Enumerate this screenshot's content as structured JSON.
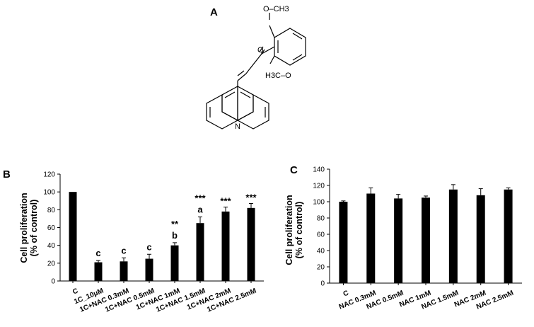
{
  "panels": {
    "a": {
      "letter": "A"
    },
    "b": {
      "letter": "B"
    },
    "c": {
      "letter": "C"
    }
  },
  "structure": {
    "methoxy_top": "O–CH3",
    "carbonyl_o": "O",
    "methoxy_bottom": "H3C–O",
    "nitrogen": "N"
  },
  "chart_data": [
    {
      "type": "bar",
      "panel": "B",
      "title": "",
      "xlabel": "",
      "ylabel_line1": "Cell proliferation",
      "ylabel_line2": "(% of control)",
      "ylim": [
        0,
        120
      ],
      "yticks": [
        0,
        20,
        40,
        60,
        80,
        100,
        120
      ],
      "grid": false,
      "bar_color": "#000000",
      "categories": [
        "C",
        "1C_10μM",
        "1C+NAC 0.3mM",
        "1C+NAC 0.5mM",
        "1C+NAC 1mM",
        "1C+NAC 1.5mM",
        "1C+NAC 2mM",
        "1C+NAC 2.5mM"
      ],
      "values": [
        100,
        21,
        22,
        25,
        40,
        65,
        78,
        82
      ],
      "errors": [
        0,
        2,
        4,
        5,
        3,
        7,
        5,
        5
      ],
      "letter_labels": [
        "",
        "c",
        "c",
        "c",
        "b",
        "a",
        "",
        ""
      ],
      "star_labels": [
        "",
        "",
        "",
        "",
        "**",
        "***",
        "***",
        "***"
      ]
    },
    {
      "type": "bar",
      "panel": "C",
      "title": "",
      "xlabel": "",
      "ylabel_line1": "Cell proliferation",
      "ylabel_line2": "(% of control)",
      "ylim": [
        0,
        140
      ],
      "yticks": [
        0,
        20,
        40,
        60,
        80,
        100,
        120,
        140
      ],
      "grid": false,
      "bar_color": "#000000",
      "categories": [
        "C",
        "NAC 0.3mM",
        "NAC 0.5mM",
        "NAC 1mM",
        "NAC 1.5mM",
        "NAC 2mM",
        "NAC 2.5mM"
      ],
      "values": [
        100,
        110,
        104,
        105,
        115,
        108,
        115
      ],
      "errors": [
        1,
        7,
        5,
        2,
        6,
        8,
        2
      ],
      "letter_labels": [
        "",
        "",
        "",
        "",
        "",
        "",
        ""
      ],
      "star_labels": [
        "",
        "",
        "",
        "",
        "",
        "",
        ""
      ]
    }
  ]
}
